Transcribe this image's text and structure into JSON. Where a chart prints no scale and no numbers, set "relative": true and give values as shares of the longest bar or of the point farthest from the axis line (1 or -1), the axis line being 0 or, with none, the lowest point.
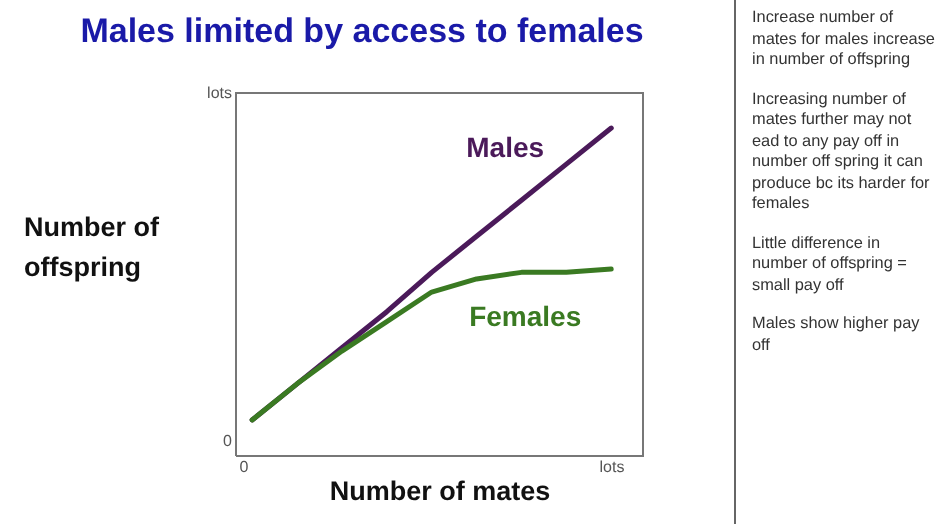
{
  "chart_data": {
    "type": "line",
    "title": "Males limited by access to females",
    "xlabel": "Number of mates",
    "ylabel": "Number of offspring",
    "relative": true,
    "categories": [
      null,
      null,
      null,
      null,
      null,
      null,
      null,
      null,
      null
    ],
    "series": [
      {
        "name": "Males",
        "color": "#4b1a5a",
        "values": [
          0.11,
          0.22,
          0.33,
          0.44,
          0.56,
          0.67,
          0.78,
          0.89,
          1
        ]
      },
      {
        "name": "Females",
        "color": "#3a7a22",
        "values": [
          0.11,
          0.22,
          0.32,
          0.41,
          0.5,
          0.54,
          0.56,
          0.56,
          0.57
        ]
      }
    ],
    "annotations": [
      "Increase number of mates for males increase in number of offspring",
      "Increasing number of mates further may not ead to any pay off in number off spring it can produce bc its harder for females",
      "Little difference in number of offspring = small pay off",
      "Males show higher pay off",
      "lots",
      "0",
      "0",
      "lots"
    ],
    "grid": false,
    "legend": false,
    "marker": "none",
    "line_style": "solid"
  }
}
